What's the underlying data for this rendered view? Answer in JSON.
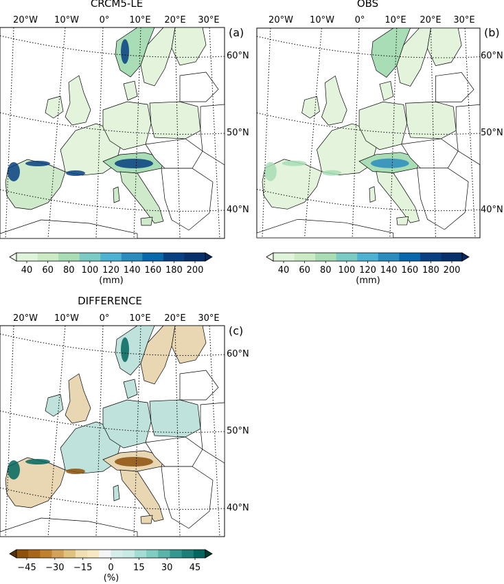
{
  "panels": [
    {
      "title": "CRCM5-LE",
      "label": "(a)",
      "lon_labels": [
        "20°W",
        "10°W",
        "0°",
        "10°E",
        "20°E",
        "30°E"
      ],
      "lat_labels": [
        "60°N",
        "50°N",
        "40°N"
      ],
      "colorbar": {
        "ticks": [
          "40",
          "60",
          "80",
          "100",
          "120",
          "140",
          "160",
          "180",
          "200"
        ],
        "unit": "(mm)",
        "colors": [
          "#f7fcf0",
          "#e0f3db",
          "#ccebc5",
          "#a8ddb5",
          "#7bccc4",
          "#4eb3d3",
          "#2b8cbe",
          "#0868ac",
          "#084081",
          "#08306b",
          "#062a5c"
        ]
      }
    },
    {
      "title": "OBS",
      "label": "(b)",
      "lon_labels": [
        "20°W",
        "10°W",
        "0°",
        "10°E",
        "20°E",
        "30°E"
      ],
      "lat_labels": [
        "60°N",
        "50°N",
        "40°N"
      ],
      "colorbar": {
        "ticks": [
          "40",
          "60",
          "80",
          "100",
          "120",
          "140",
          "160",
          "180",
          "200"
        ],
        "unit": "(mm)",
        "colors": [
          "#f7fcf0",
          "#e0f3db",
          "#ccebc5",
          "#a8ddb5",
          "#7bccc4",
          "#4eb3d3",
          "#2b8cbe",
          "#0868ac",
          "#084081",
          "#08306b",
          "#062a5c"
        ]
      }
    },
    {
      "title": "DIFFERENCE",
      "label": "(c)",
      "lon_labels": [
        "20°W",
        "10°W",
        "0°",
        "10°E",
        "20°E",
        "30°E"
      ],
      "lat_labels": [
        "60°N",
        "50°N",
        "40°N"
      ],
      "colorbar": {
        "ticks": [
          "−45",
          "−30",
          "−15",
          "0",
          "15",
          "30",
          "45"
        ],
        "unit": "(%)",
        "colors": [
          "#543005",
          "#8c510a",
          "#a8661a",
          "#bf812d",
          "#d2a25b",
          "#dfc27d",
          "#f0dfb3",
          "#f6e8c3",
          "#f5f5f5",
          "#d5ece9",
          "#c7eae5",
          "#a2dcd2",
          "#80cdc1",
          "#5ab4aa",
          "#35978f",
          "#1e7f76",
          "#01665e",
          "#003c30"
        ]
      }
    }
  ],
  "map_colors": {
    "land_precip_low": "#e3f3dc",
    "land_precip_mid": "#a8ddb5",
    "land_precip_high": "#2b8cbe",
    "land_precip_max": "#084081",
    "diff_neutral": "#eef6f3",
    "diff_pos": "#35978f",
    "diff_neg": "#bf812d",
    "border": "#000000",
    "graticule": "#000000"
  }
}
